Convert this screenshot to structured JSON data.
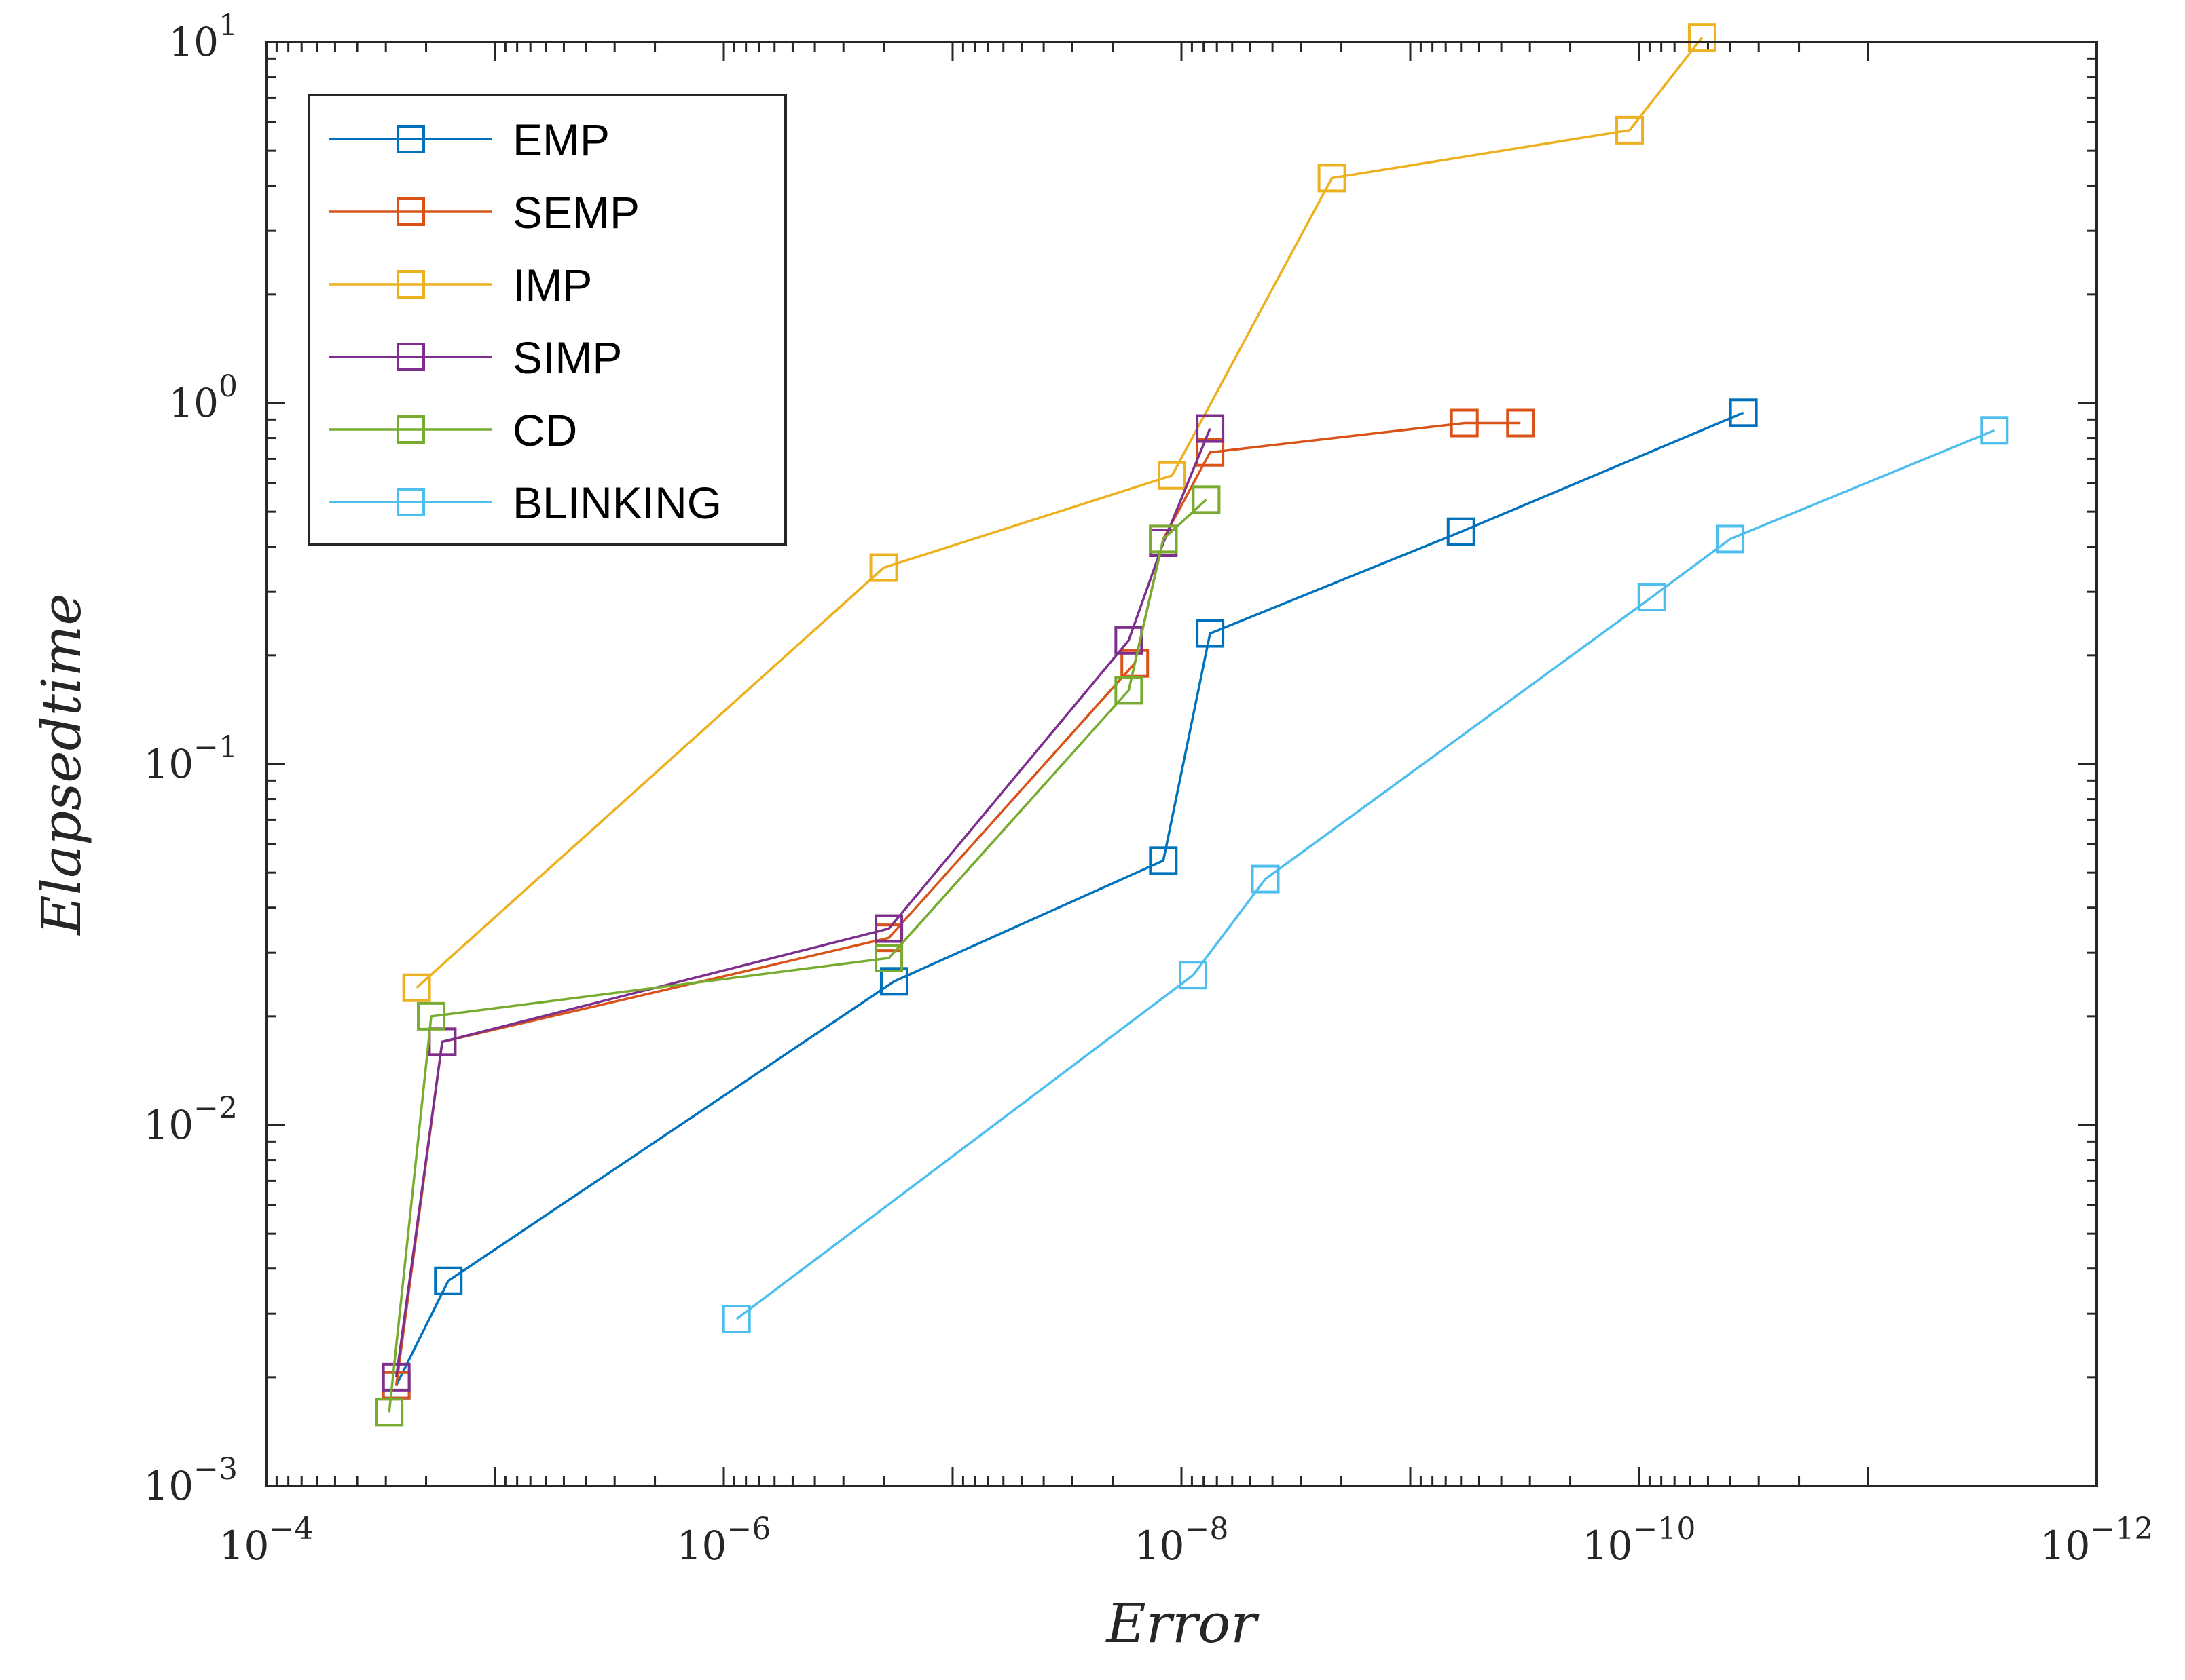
{
  "chart_data": {
    "type": "line",
    "title": "",
    "xlabel": "Error",
    "ylabel": "Elapsedtime",
    "xscale": "log",
    "yscale": "log",
    "x_reversed": true,
    "xlim": [
      0.0001,
      1e-12
    ],
    "ylim": [
      0.001,
      10
    ],
    "grid": false,
    "legend_position": "top-left",
    "marker": "square",
    "x_ticks": [
      {
        "value": 0.0001,
        "base": "10",
        "exp": "−4"
      },
      {
        "value": 1e-06,
        "base": "10",
        "exp": "−6"
      },
      {
        "value": 1e-08,
        "base": "10",
        "exp": "−8"
      },
      {
        "value": 1e-10,
        "base": "10",
        "exp": "−10"
      },
      {
        "value": 1e-12,
        "base": "10",
        "exp": "−12"
      }
    ],
    "y_ticks": [
      {
        "value": 0.001,
        "base": "10",
        "exp": "−3"
      },
      {
        "value": 0.01,
        "base": "10",
        "exp": "−2"
      },
      {
        "value": 0.1,
        "base": "10",
        "exp": "−1"
      },
      {
        "value": 1,
        "base": "10",
        "exp": "0"
      },
      {
        "value": 10,
        "base": "10",
        "exp": "1"
      }
    ],
    "series": [
      {
        "name": "EMP",
        "color": "#0072BD",
        "x": [
          2.7e-05,
          1.6e-05,
          1.8e-07,
          1.2e-08,
          7.5e-09,
          6e-10,
          3.5e-11
        ],
        "y": [
          0.0019,
          0.0037,
          0.025,
          0.054,
          0.23,
          0.44,
          0.94
        ]
      },
      {
        "name": "SEMP",
        "color": "#D95319",
        "x": [
          2.7e-05,
          1.7e-05,
          1.9e-07,
          1.6e-08,
          1.2e-08,
          7.5e-09,
          5.8e-10,
          3.3e-10
        ],
        "y": [
          0.0019,
          0.017,
          0.033,
          0.19,
          0.42,
          0.73,
          0.88,
          0.88
        ]
      },
      {
        "name": "IMP",
        "color": "#EDB120",
        "x": [
          2.2e-05,
          2e-07,
          1.1e-08,
          2.2e-09,
          1.1e-10,
          5.3e-11
        ],
        "y": [
          0.024,
          0.35,
          0.63,
          4.2,
          5.7,
          10.3
        ]
      },
      {
        "name": "SIMP",
        "color": "#7E2F8E",
        "x": [
          2.7e-05,
          1.7e-05,
          1.9e-07,
          1.7e-08,
          1.2e-08,
          7.5e-09
        ],
        "y": [
          0.002,
          0.017,
          0.035,
          0.22,
          0.41,
          0.85
        ]
      },
      {
        "name": "CD",
        "color": "#77AC30",
        "x": [
          2.9e-05,
          1.9e-05,
          1.9e-07,
          1.7e-08,
          1.2e-08,
          7.8e-09
        ],
        "y": [
          0.0016,
          0.02,
          0.029,
          0.16,
          0.42,
          0.54
        ]
      },
      {
        "name": "BLINKING",
        "color": "#4DBEEE",
        "x": [
          8.8e-07,
          8.9e-09,
          4.3e-09,
          8.8e-11,
          4e-11,
          2.8e-12
        ],
        "y": [
          0.0029,
          0.026,
          0.048,
          0.29,
          0.42,
          0.84
        ]
      }
    ]
  }
}
